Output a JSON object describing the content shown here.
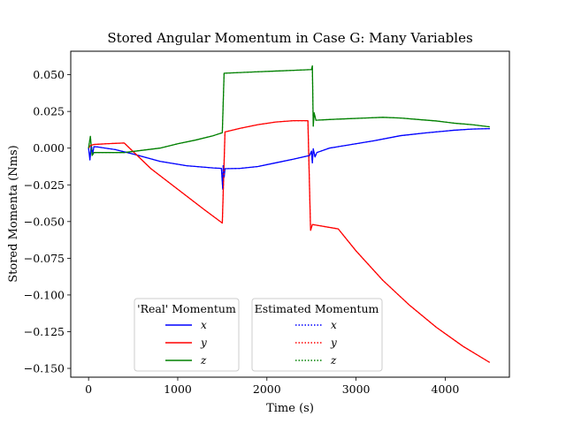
{
  "chart_data": {
    "type": "line",
    "title": "Stored Angular Momentum in Case G: Many Variables",
    "xlabel": "Time (s)",
    "ylabel": "Stored Momenta (Nms)",
    "xlim": [
      -200,
      4720
    ],
    "ylim": [
      -0.156,
      0.066
    ],
    "xticks": [
      0,
      1000,
      2000,
      3000,
      4000
    ],
    "xtick_labels": [
      "0",
      "1000",
      "2000",
      "3000",
      "4000"
    ],
    "yticks": [
      0.05,
      0.025,
      0.0,
      -0.025,
      -0.05,
      -0.075,
      -0.1,
      -0.125,
      -0.15
    ],
    "ytick_labels": [
      "0.050",
      "0.025",
      "0.000",
      "−0.025",
      "−0.050",
      "−0.075",
      "−0.100",
      "−0.125",
      "−0.150"
    ],
    "grid": false,
    "legends": [
      {
        "title": "'Real' Momentum",
        "placement": "lower-center-left",
        "entries": [
          {
            "label": "x",
            "color": "#0000ff",
            "style": "solid"
          },
          {
            "label": "y",
            "color": "#ff0000",
            "style": "solid"
          },
          {
            "label": "z",
            "color": "#008000",
            "style": "solid"
          }
        ]
      },
      {
        "title": "Estimated Momentum",
        "placement": "lower-center",
        "entries": [
          {
            "label": "x",
            "color": "#0000ff",
            "style": "dotted"
          },
          {
            "label": "y",
            "color": "#ff0000",
            "style": "dotted"
          },
          {
            "label": "z",
            "color": "#008000",
            "style": "dotted"
          }
        ]
      }
    ],
    "series": [
      {
        "name": "x",
        "color": "#0000ff",
        "points": [
          [
            0,
            0.0
          ],
          [
            15,
            -0.008
          ],
          [
            30,
            0.002
          ],
          [
            45,
            -0.004
          ],
          [
            60,
            0.001
          ],
          [
            100,
            0.0008
          ],
          [
            300,
            -0.001
          ],
          [
            500,
            -0.004
          ],
          [
            800,
            -0.009
          ],
          [
            1100,
            -0.012
          ],
          [
            1400,
            -0.0135
          ],
          [
            1490,
            -0.0138
          ],
          [
            1505,
            -0.028
          ],
          [
            1510,
            -0.012
          ],
          [
            1520,
            -0.02
          ],
          [
            1530,
            -0.014
          ],
          [
            1700,
            -0.0138
          ],
          [
            1900,
            -0.0125
          ],
          [
            2100,
            -0.01
          ],
          [
            2300,
            -0.0075
          ],
          [
            2480,
            -0.005
          ],
          [
            2500,
            -0.002
          ],
          [
            2510,
            -0.01
          ],
          [
            2520,
            -0.0005
          ],
          [
            2540,
            -0.006
          ],
          [
            2560,
            -0.003
          ],
          [
            2700,
            0.0
          ],
          [
            2900,
            0.002
          ],
          [
            3200,
            0.005
          ],
          [
            3500,
            0.0085
          ],
          [
            3800,
            0.0105
          ],
          [
            4100,
            0.0122
          ],
          [
            4300,
            0.013
          ],
          [
            4500,
            0.0133
          ]
        ]
      },
      {
        "name": "y",
        "color": "#ff0000",
        "points": [
          [
            0,
            0.0
          ],
          [
            20,
            0.0018
          ],
          [
            60,
            0.0025
          ],
          [
            200,
            0.003
          ],
          [
            400,
            0.0035
          ],
          [
            700,
            -0.014
          ],
          [
            1000,
            -0.028
          ],
          [
            1300,
            -0.042
          ],
          [
            1500,
            -0.051
          ],
          [
            1530,
            0.011
          ],
          [
            1700,
            0.0135
          ],
          [
            1900,
            0.016
          ],
          [
            2100,
            0.0178
          ],
          [
            2300,
            0.0187
          ],
          [
            2460,
            0.0187
          ],
          [
            2490,
            -0.056
          ],
          [
            2510,
            -0.052
          ],
          [
            2800,
            -0.055
          ],
          [
            3000,
            -0.07
          ],
          [
            3300,
            -0.09
          ],
          [
            3600,
            -0.107
          ],
          [
            3900,
            -0.122
          ],
          [
            4200,
            -0.135
          ],
          [
            4500,
            -0.146
          ]
        ]
      },
      {
        "name": "z",
        "color": "#008000",
        "points": [
          [
            0,
            0.0
          ],
          [
            20,
            0.008
          ],
          [
            40,
            -0.005
          ],
          [
            60,
            -0.003
          ],
          [
            200,
            -0.003
          ],
          [
            400,
            -0.003
          ],
          [
            600,
            -0.0015
          ],
          [
            800,
            0.0
          ],
          [
            1000,
            0.003
          ],
          [
            1200,
            0.0055
          ],
          [
            1400,
            0.0085
          ],
          [
            1500,
            0.0105
          ],
          [
            1520,
            0.051
          ],
          [
            1700,
            0.0515
          ],
          [
            1900,
            0.052
          ],
          [
            2100,
            0.0525
          ],
          [
            2300,
            0.053
          ],
          [
            2500,
            0.0535
          ],
          [
            2510,
            0.056
          ],
          [
            2520,
            0.015
          ],
          [
            2530,
            0.024
          ],
          [
            2550,
            0.019
          ],
          [
            2700,
            0.0195
          ],
          [
            2900,
            0.02
          ],
          [
            3100,
            0.0205
          ],
          [
            3300,
            0.021
          ],
          [
            3500,
            0.0205
          ],
          [
            3700,
            0.0195
          ],
          [
            3900,
            0.0185
          ],
          [
            4100,
            0.017
          ],
          [
            4300,
            0.016
          ],
          [
            4500,
            0.0145
          ]
        ]
      },
      {
        "name": "x",
        "color": "#0000ff",
        "dashed": true,
        "points": [
          [
            0,
            0.0
          ],
          [
            15,
            -0.008
          ],
          [
            30,
            0.002
          ],
          [
            45,
            -0.004
          ],
          [
            60,
            0.001
          ],
          [
            100,
            0.0008
          ],
          [
            300,
            -0.001
          ],
          [
            500,
            -0.004
          ],
          [
            800,
            -0.009
          ],
          [
            1100,
            -0.012
          ],
          [
            1400,
            -0.0135
          ],
          [
            1490,
            -0.0138
          ],
          [
            1505,
            -0.028
          ],
          [
            1510,
            -0.012
          ],
          [
            1520,
            -0.02
          ],
          [
            1530,
            -0.014
          ],
          [
            1700,
            -0.0138
          ],
          [
            1900,
            -0.0125
          ],
          [
            2100,
            -0.01
          ],
          [
            2300,
            -0.0075
          ],
          [
            2480,
            -0.005
          ],
          [
            2500,
            -0.002
          ],
          [
            2510,
            -0.01
          ],
          [
            2520,
            -0.0005
          ],
          [
            2540,
            -0.006
          ],
          [
            2560,
            -0.003
          ],
          [
            2700,
            0.0
          ],
          [
            2900,
            0.002
          ],
          [
            3200,
            0.005
          ],
          [
            3500,
            0.0085
          ],
          [
            3800,
            0.0105
          ],
          [
            4100,
            0.0122
          ],
          [
            4300,
            0.013
          ],
          [
            4500,
            0.0133
          ]
        ]
      },
      {
        "name": "y",
        "color": "#ff0000",
        "dashed": true,
        "points": [
          [
            0,
            0.0
          ],
          [
            20,
            0.0018
          ],
          [
            60,
            0.0025
          ],
          [
            200,
            0.003
          ],
          [
            400,
            0.0035
          ],
          [
            700,
            -0.014
          ],
          [
            1000,
            -0.028
          ],
          [
            1300,
            -0.042
          ],
          [
            1500,
            -0.051
          ],
          [
            1530,
            0.011
          ],
          [
            1700,
            0.0135
          ],
          [
            1900,
            0.016
          ],
          [
            2100,
            0.0178
          ],
          [
            2300,
            0.0187
          ],
          [
            2460,
            0.0187
          ],
          [
            2490,
            -0.056
          ],
          [
            2510,
            -0.052
          ],
          [
            2800,
            -0.055
          ],
          [
            3000,
            -0.07
          ],
          [
            3300,
            -0.09
          ],
          [
            3600,
            -0.107
          ],
          [
            3900,
            -0.122
          ],
          [
            4200,
            -0.135
          ],
          [
            4500,
            -0.146
          ]
        ]
      },
      {
        "name": "z",
        "color": "#008000",
        "dashed": true,
        "points": [
          [
            0,
            0.0
          ],
          [
            20,
            0.008
          ],
          [
            40,
            -0.005
          ],
          [
            60,
            -0.003
          ],
          [
            200,
            -0.003
          ],
          [
            400,
            -0.003
          ],
          [
            600,
            -0.0015
          ],
          [
            800,
            0.0
          ],
          [
            1000,
            0.003
          ],
          [
            1200,
            0.0055
          ],
          [
            1400,
            0.0085
          ],
          [
            1500,
            0.0105
          ],
          [
            1520,
            0.051
          ],
          [
            1700,
            0.0515
          ],
          [
            1900,
            0.052
          ],
          [
            2100,
            0.0525
          ],
          [
            2300,
            0.053
          ],
          [
            2500,
            0.0535
          ],
          [
            2510,
            0.056
          ],
          [
            2520,
            0.015
          ],
          [
            2530,
            0.024
          ],
          [
            2550,
            0.019
          ],
          [
            2700,
            0.0195
          ],
          [
            2900,
            0.02
          ],
          [
            3100,
            0.0205
          ],
          [
            3300,
            0.021
          ],
          [
            3500,
            0.0205
          ],
          [
            3700,
            0.0195
          ],
          [
            3900,
            0.0185
          ],
          [
            4100,
            0.017
          ],
          [
            4300,
            0.016
          ],
          [
            4500,
            0.0145
          ]
        ]
      }
    ]
  }
}
